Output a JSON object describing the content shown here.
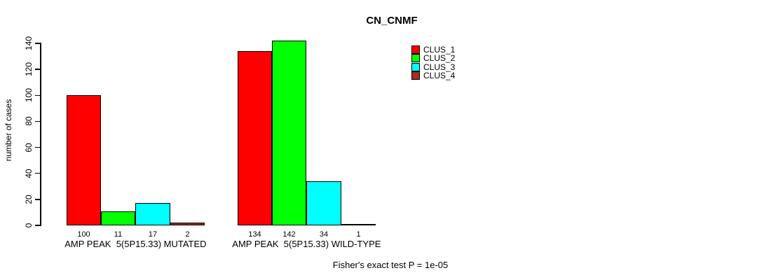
{
  "chart_data": {
    "type": "bar",
    "title": "CN_CNMF",
    "ylabel": "number of cases",
    "xlabel": "",
    "annotation": "Fisher's exact test P = 1e-05",
    "ylim": [
      0,
      140
    ],
    "yticks": [
      0,
      20,
      40,
      60,
      80,
      100,
      120,
      140
    ],
    "grid": false,
    "legend_position": "top-right",
    "categories": [
      "AMP PEAK  5(5P15.33) MUTATED",
      "AMP PEAK  5(5P15.33) WILD-TYPE"
    ],
    "series": [
      {
        "name": "CLUS_1",
        "color": "#FF0000",
        "values": [
          100,
          134
        ]
      },
      {
        "name": "CLUS_2",
        "color": "#00FF00",
        "values": [
          11,
          142
        ]
      },
      {
        "name": "CLUS_3",
        "color": "#00FFFF",
        "values": [
          17,
          34
        ]
      },
      {
        "name": "CLUS_4",
        "color": "#A52A2A",
        "values": [
          2,
          1
        ]
      }
    ],
    "bar_value_labels": [
      [
        100,
        11,
        17,
        2
      ],
      [
        134,
        142,
        34,
        1
      ]
    ],
    "bar_outline_color": "#000000",
    "background_color": "#FFFFFF"
  }
}
